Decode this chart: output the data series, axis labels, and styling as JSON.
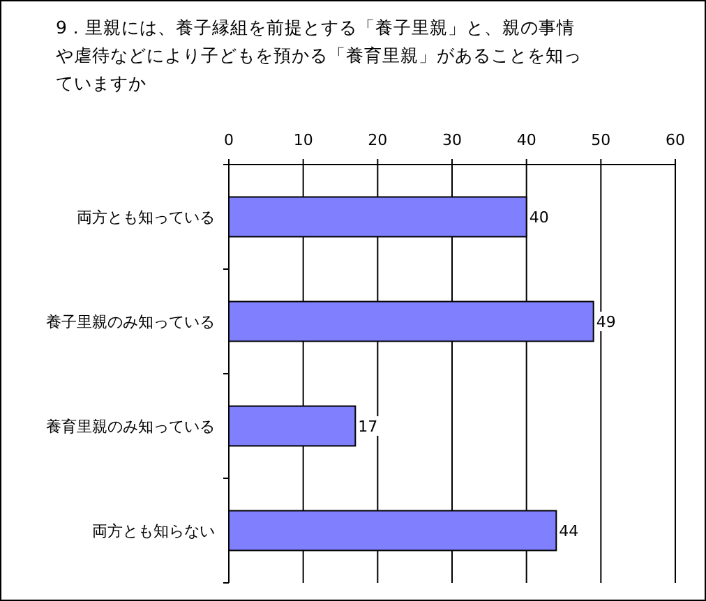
{
  "chart_data": {
    "type": "bar",
    "orientation": "horizontal",
    "title": "9．里親には、養子縁組を前提とする「養子里親」と、親の事情や虐待などにより子どもを預かる「養育里親」があることを知っていますか",
    "categories": [
      "両方とも知っている",
      "養子里親のみ知っている",
      "養育里親のみ知っている",
      "両方とも知らない"
    ],
    "values": [
      40,
      49,
      17,
      44
    ],
    "color": "#8080ff",
    "xlim": [
      0,
      60
    ],
    "xticks": [
      0,
      10,
      20,
      30,
      40,
      50,
      60
    ],
    "grid": "x",
    "data_labels": true
  }
}
